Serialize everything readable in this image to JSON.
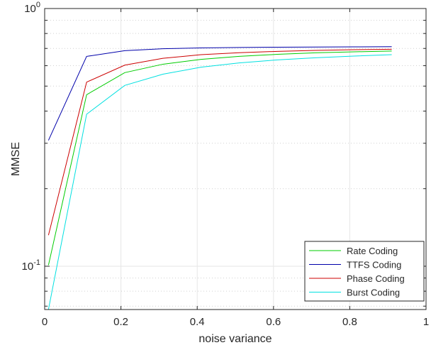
{
  "chart_data": {
    "type": "line",
    "title": "",
    "xlabel": "noise variance",
    "ylabel": "MMSE",
    "xlim": [
      0,
      1
    ],
    "ylim": [
      0.068,
      1
    ],
    "yscale": "log",
    "grid": true,
    "legend_position": "bottom-right",
    "xticks": [
      "0",
      "0.2",
      "0.4",
      "0.6",
      "0.8",
      "1"
    ],
    "yticks": [
      {
        "base": "10",
        "exp": "-1",
        "value": 0.1
      },
      {
        "base": "10",
        "exp": "0",
        "value": 1
      }
    ],
    "x": [
      0.01,
      0.11,
      0.21,
      0.31,
      0.41,
      0.51,
      0.61,
      0.71,
      0.81,
      0.91
    ],
    "series": [
      {
        "name": "Rate Coding",
        "color": "#00cc00",
        "values": [
          0.101,
          0.463,
          0.564,
          0.608,
          0.635,
          0.652,
          0.664,
          0.673,
          0.679,
          0.684
        ]
      },
      {
        "name": "TTFS Coding",
        "color": "#0000aa",
        "values": [
          0.308,
          0.652,
          0.686,
          0.698,
          0.703,
          0.706,
          0.708,
          0.709,
          0.71,
          0.711
        ]
      },
      {
        "name": "Phase Coding",
        "color": "#cc0000",
        "values": [
          0.132,
          0.518,
          0.603,
          0.641,
          0.662,
          0.674,
          0.682,
          0.688,
          0.692,
          0.695
        ]
      },
      {
        "name": "Burst Coding",
        "color": "#00e0e0",
        "values": [
          0.068,
          0.389,
          0.503,
          0.556,
          0.592,
          0.615,
          0.632,
          0.644,
          0.654,
          0.662
        ]
      }
    ]
  }
}
